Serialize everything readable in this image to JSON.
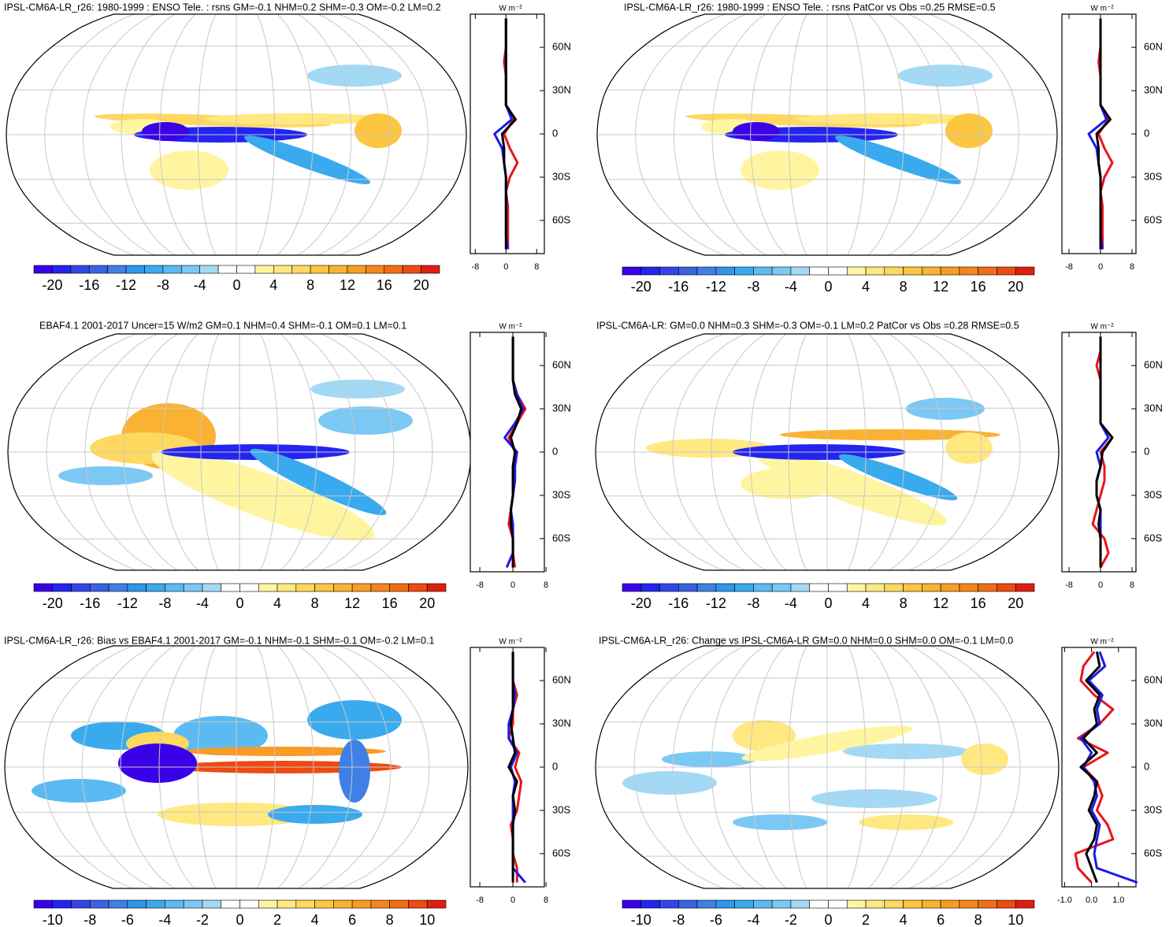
{
  "colorbar_colors": [
    "#3a00e8",
    "#2424f0",
    "#3345e6",
    "#3a62e0",
    "#3f80e6",
    "#2f96e8",
    "#3aaaee",
    "#5bbaf2",
    "#7cc8f4",
    "#a3d9f5",
    "#ffffff",
    "#ffffff",
    "#fff5a0",
    "#ffe880",
    "#ffd860",
    "#fcc640",
    "#f9b232",
    "#f89c26",
    "#f5851c",
    "#f26d15",
    "#ee4a12",
    "#de1f10"
  ],
  "chart_data": [
    {
      "type": "line",
      "title": "IPSL-CM6A-LR_r26: 1980-1999 : ENSO Tele. : rsns GM=-0.1 NHM=0.2 SHM=-0.3 OM=-0.2 LM=0.2",
      "unit": "W m⁻²",
      "colorbar": {
        "levels": [
          -20,
          -18,
          -16,
          -14,
          -12,
          -10,
          -8,
          -6,
          -4,
          -2,
          0,
          2,
          4,
          6,
          8,
          10,
          12,
          14,
          16,
          18,
          20
        ],
        "ticks": [
          -20,
          -16,
          -12,
          -8,
          -4,
          0,
          4,
          8,
          12,
          16,
          20
        ]
      },
      "y": [
        -80,
        -70,
        -60,
        -50,
        -40,
        -30,
        -20,
        -10,
        0,
        10,
        20,
        30,
        40,
        50,
        60,
        70,
        80
      ],
      "ylim": [
        -83,
        83
      ],
      "yticks": [
        {
          "value": 60,
          "label": "60N"
        },
        {
          "value": 30,
          "label": "30N"
        },
        0,
        {
          "value": -30,
          "label": "30S"
        },
        {
          "value": -60,
          "label": "60S"
        }
      ],
      "xlim": [
        -9.3,
        10
      ],
      "xticks": [
        -8,
        0,
        8
      ],
      "series": [
        {
          "color": "#e8141c",
          "values": [
            0.5,
            0.5,
            0.5,
            0.5,
            0,
            1,
            3,
            1,
            -0.5,
            2,
            0,
            0,
            0,
            -0.5,
            0,
            0,
            0
          ]
        },
        {
          "color": "#1a1ae6",
          "values": [
            0.5,
            0,
            0,
            0,
            0,
            0,
            -0.5,
            -1,
            -3,
            1.5,
            0,
            0,
            0,
            0,
            0,
            0,
            0
          ]
        },
        {
          "color": "#000000",
          "values": [
            0,
            0,
            0,
            0,
            0,
            0,
            -0.5,
            -0.5,
            -1,
            2.5,
            0,
            0,
            0,
            0,
            0,
            0,
            0
          ]
        }
      ]
    },
    {
      "type": "line",
      "title": "IPSL-CM6A-LR_r26: 1980-1999 : ENSO Tele. : rsns PatCor vs Obs =0.25 RMSE=0.5",
      "unit": "W m⁻²",
      "colorbar": {
        "levels": [
          -20,
          -18,
          -16,
          -14,
          -12,
          -10,
          -8,
          -6,
          -4,
          -2,
          0,
          2,
          4,
          6,
          8,
          10,
          12,
          14,
          16,
          18,
          20
        ],
        "ticks": [
          -20,
          -16,
          -12,
          -8,
          -4,
          0,
          4,
          8,
          12,
          16,
          20
        ]
      },
      "y": [
        -80,
        -70,
        -60,
        -50,
        -40,
        -30,
        -20,
        -10,
        0,
        10,
        20,
        30,
        40,
        50,
        60,
        70,
        80
      ],
      "ylim": [
        -83,
        83
      ],
      "yticks": [
        {
          "value": 60,
          "label": "60N"
        },
        {
          "value": 30,
          "label": "30N"
        },
        0,
        {
          "value": -30,
          "label": "30S"
        },
        {
          "value": -60,
          "label": "60S"
        }
      ],
      "xlim": [
        -9.8,
        9
      ],
      "xticks": [
        -8,
        0,
        8
      ],
      "series": [
        {
          "color": "#e8141c",
          "values": [
            0.5,
            0.5,
            0.5,
            0.5,
            0,
            1,
            3,
            1,
            -0.5,
            2,
            0,
            0,
            0,
            -0.5,
            0,
            0,
            0
          ]
        },
        {
          "color": "#1a1ae6",
          "values": [
            0.5,
            0,
            0,
            0,
            0,
            0,
            -0.5,
            -1,
            -3,
            1.5,
            0,
            0,
            0,
            0,
            0,
            0,
            0
          ]
        },
        {
          "color": "#000000",
          "values": [
            0,
            0,
            0,
            0,
            0,
            0,
            -0.5,
            -0.5,
            -1,
            2.5,
            0,
            0,
            0,
            0,
            0,
            0,
            0
          ]
        }
      ]
    },
    {
      "type": "line",
      "title": "EBAF4.1 2001-2017 Uncer=15 W/m2 GM=0.1 NHM=0.4 SHM=-0.1 OM=0.1 LM=0.1",
      "unit": "W m⁻²",
      "colorbar": {
        "levels": [
          -20,
          -18,
          -16,
          -14,
          -12,
          -10,
          -8,
          -6,
          -4,
          -2,
          0,
          2,
          4,
          6,
          8,
          10,
          12,
          14,
          16,
          18,
          20
        ],
        "ticks": [
          -20,
          -16,
          -12,
          -8,
          -4,
          0,
          4,
          8,
          12,
          16,
          20
        ]
      },
      "y": [
        -80,
        -70,
        -60,
        -50,
        -40,
        -30,
        -20,
        -10,
        0,
        10,
        20,
        30,
        40,
        50,
        60,
        70,
        80
      ],
      "ylim": [
        -83,
        83
      ],
      "yticks": [
        {
          "value": 60,
          "label": "60N"
        },
        {
          "value": 30,
          "label": "30N"
        },
        0,
        {
          "value": -30,
          "label": "30S"
        },
        {
          "value": -60,
          "label": "60S"
        }
      ],
      "xlim": [
        -10.3,
        7.6
      ],
      "xticks": [
        -8,
        0,
        8
      ],
      "series": [
        {
          "color": "#e8141c",
          "values": [
            0.5,
            0,
            0,
            -1,
            -0.5,
            0,
            0,
            0,
            0.5,
            -1,
            1,
            3,
            1,
            0,
            0,
            0,
            0
          ]
        },
        {
          "color": "#1a1ae6",
          "values": [
            -1.5,
            0,
            0,
            0,
            -0.5,
            0,
            0.5,
            0.5,
            1,
            -2,
            0.5,
            2.5,
            1,
            0,
            0,
            0,
            0
          ]
        },
        {
          "color": "#000000",
          "values": [
            0,
            0,
            0,
            -0.5,
            -0.5,
            0,
            0,
            0,
            0.5,
            -0.5,
            1,
            2,
            0.5,
            0,
            0,
            0,
            0
          ]
        }
      ]
    },
    {
      "type": "line",
      "title": "IPSL-CM6A-LR: GM=0.0 NHM=0.3 SHM=-0.3 OM=-0.1 LM=0.2 PatCor vs Obs =0.28 RMSE=0.5",
      "unit": "W m⁻²",
      "colorbar": {
        "levels": [
          -20,
          -18,
          -16,
          -14,
          -12,
          -10,
          -8,
          -6,
          -4,
          -2,
          0,
          2,
          4,
          6,
          8,
          10,
          12,
          14,
          16,
          18,
          20
        ],
        "ticks": [
          -20,
          -16,
          -12,
          -8,
          -4,
          0,
          4,
          8,
          12,
          16,
          20
        ]
      },
      "y": [
        -80,
        -70,
        -60,
        -50,
        -40,
        -30,
        -20,
        -10,
        0,
        10,
        20,
        30,
        40,
        50,
        60,
        70,
        80
      ],
      "ylim": [
        -83,
        83
      ],
      "yticks": [
        {
          "value": 60,
          "label": "60N"
        },
        {
          "value": 30,
          "label": "30N"
        },
        0,
        {
          "value": -30,
          "label": "30S"
        },
        {
          "value": -60,
          "label": "60S"
        }
      ],
      "xlim": [
        -9.8,
        9
      ],
      "xticks": [
        -8,
        0,
        8
      ],
      "series": [
        {
          "color": "#e8141c",
          "values": [
            0,
            2,
            1,
            -2,
            -1,
            0,
            1,
            1,
            0,
            3,
            0,
            0,
            0,
            0,
            -1,
            0,
            0
          ]
        },
        {
          "color": "#1a1ae6",
          "values": [
            0,
            0,
            0,
            0,
            0,
            -1,
            -1,
            0,
            -1,
            2,
            0,
            0,
            0,
            0,
            0,
            0,
            0
          ]
        },
        {
          "color": "#000000",
          "values": [
            0,
            0,
            0,
            -0.5,
            0,
            -1,
            -1,
            0,
            0.5,
            3,
            0,
            0,
            0,
            0,
            0,
            0,
            0
          ]
        }
      ]
    },
    {
      "type": "line",
      "title": "IPSL-CM6A-LR_r26: Bias vs EBAF4.1 2001-2017 GM=-0.1 NHM=-0.1 SHM=-0.1 OM=-0.2 LM=0.1",
      "unit": "W m⁻²",
      "colorbar": {
        "levels": [
          -10,
          -9,
          -8,
          -7,
          -6,
          -5,
          -4,
          -3,
          -2,
          -1,
          0,
          1,
          2,
          3,
          4,
          5,
          6,
          7,
          8,
          9,
          10
        ],
        "ticks": [
          -10,
          -8,
          -6,
          -4,
          -2,
          0,
          2,
          4,
          6,
          8,
          10
        ]
      },
      "y": [
        -80,
        -70,
        -60,
        -50,
        -40,
        -30,
        -20,
        -10,
        0,
        10,
        20,
        30,
        40,
        50,
        60,
        70,
        80
      ],
      "ylim": [
        -83,
        83
      ],
      "yticks": [
        {
          "value": 60,
          "label": "60N"
        },
        {
          "value": 30,
          "label": "30N"
        },
        0,
        {
          "value": -30,
          "label": "30S"
        },
        {
          "value": -60,
          "label": "60S"
        }
      ],
      "xlim": [
        -10.3,
        7.6
      ],
      "xticks": [
        -8,
        0,
        8
      ],
      "series": [
        {
          "color": "#e8141c",
          "values": [
            1,
            1,
            0,
            0,
            -0.5,
            1,
            1.5,
            2,
            0.5,
            1.5,
            -1,
            0,
            0,
            1,
            0,
            0,
            0
          ]
        },
        {
          "color": "#1a1ae6",
          "values": [
            3,
            0,
            0,
            0,
            0,
            0,
            0,
            0.5,
            -0.5,
            1,
            -1,
            -1,
            0,
            0.5,
            0,
            0,
            0
          ]
        },
        {
          "color": "#000000",
          "values": [
            0,
            0,
            0,
            0,
            0,
            0.5,
            0,
            1,
            -1,
            0.5,
            0,
            -0.5,
            0,
            0,
            0,
            0,
            0
          ]
        }
      ]
    },
    {
      "type": "line",
      "title": "IPSL-CM6A-LR_r26: Change vs IPSL-CM6A-LR GM=0.0 NHM=0.0 SHM=0.0 OM=-0.1 LM=0.0",
      "unit": "W m⁻²",
      "colorbar": {
        "levels": [
          -10,
          -9,
          -8,
          -7,
          -6,
          -5,
          -4,
          -3,
          -2,
          -1,
          0,
          1,
          2,
          3,
          4,
          5,
          6,
          7,
          8,
          9,
          10
        ],
        "ticks": [
          -10,
          -8,
          -6,
          -4,
          -2,
          0,
          2,
          4,
          6,
          8,
          10
        ]
      },
      "y": [
        -80,
        -70,
        -60,
        -50,
        -40,
        -30,
        -20,
        -10,
        0,
        10,
        20,
        30,
        40,
        50,
        60,
        70,
        80
      ],
      "ylim": [
        -83,
        83
      ],
      "yticks": [
        {
          "value": 60,
          "label": "60N"
        },
        {
          "value": 30,
          "label": "30N"
        },
        0,
        {
          "value": -30,
          "label": "30S"
        },
        {
          "value": -60,
          "label": "60S"
        }
      ],
      "xlim": [
        -1.1,
        1.65
      ],
      "xticks": [
        {
          "value": -1,
          "label": "-1.0"
        },
        {
          "value": 0,
          "label": "0.0"
        },
        {
          "value": 1,
          "label": "1.0"
        }
      ],
      "series": [
        {
          "color": "#e8141c",
          "values": [
            0,
            -0.5,
            -0.6,
            0.8,
            0.6,
            0.2,
            0.4,
            0.2,
            -0.3,
            0.6,
            -0.5,
            0.3,
            0.8,
            0.1,
            -0.4,
            -0.3,
            0.1
          ]
        },
        {
          "color": "#1a1ae6",
          "values": [
            1.7,
            0.2,
            0.1,
            0.2,
            0.3,
            0,
            0.2,
            0.1,
            -0.3,
            0,
            -0.4,
            0.3,
            0.2,
            0.4,
            -0.1,
            0.5,
            0.3
          ]
        },
        {
          "color": "#000000",
          "values": [
            0.2,
            0,
            -0.2,
            0.1,
            0.2,
            -0.1,
            0.1,
            0.2,
            -0.4,
            0.2,
            -0.3,
            0.2,
            0.1,
            0.3,
            -0.2,
            0.3,
            0.2
          ]
        }
      ]
    }
  ]
}
